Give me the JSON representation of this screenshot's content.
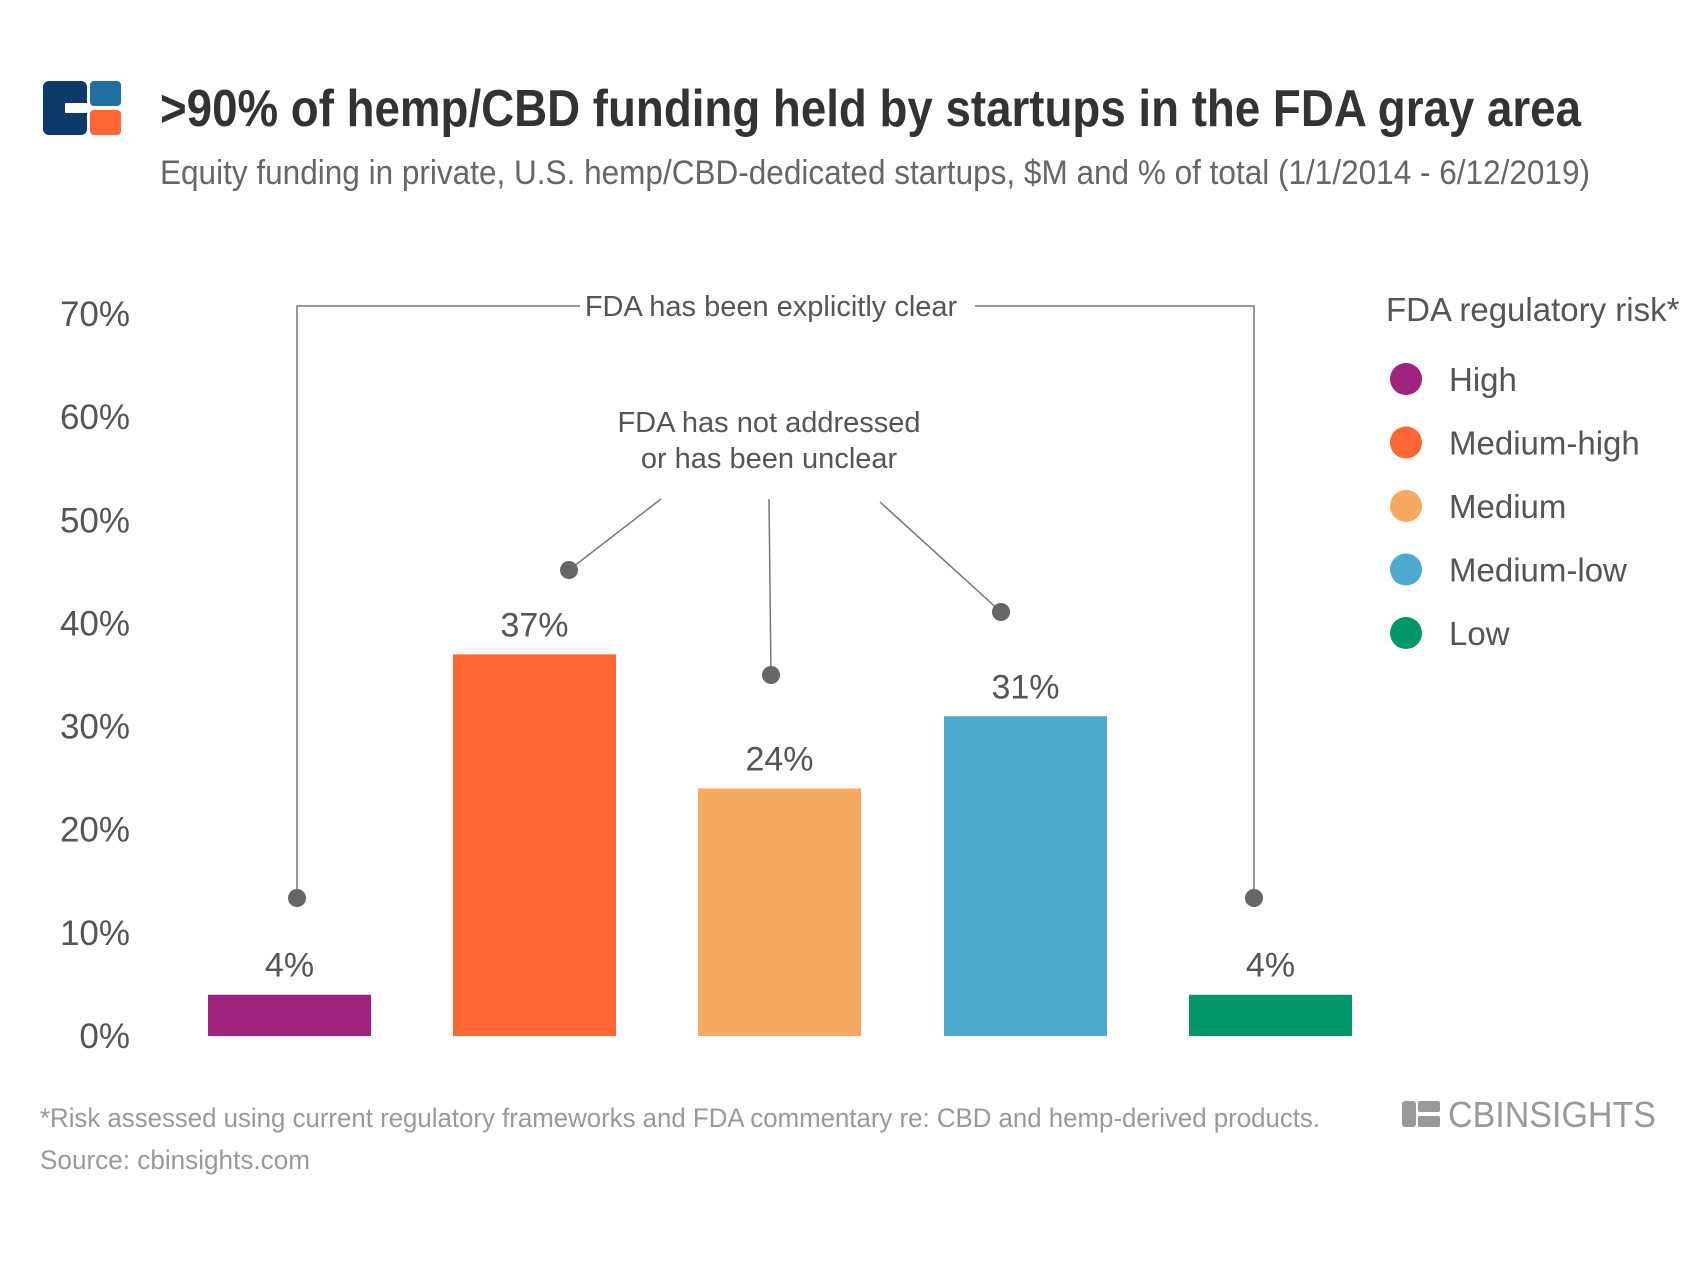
{
  "title": ">90% of hemp/CBD funding held by startups in the FDA gray area",
  "subtitle": "Equity funding in private, U.S. hemp/CBD-dedicated startups, $M and % of total (1/1/2014 - 6/12/2019)",
  "chart_data": {
    "type": "bar",
    "categories": [
      "High",
      "Medium-high",
      "Medium",
      "Medium-low",
      "Low"
    ],
    "values": [
      4,
      37,
      24,
      31,
      4
    ],
    "value_labels": [
      "4%",
      "37%",
      "24%",
      "31%",
      "4%"
    ],
    "colors": [
      "#a0237f",
      "#ff6633",
      "#f7a861",
      "#4faad0",
      "#00966a"
    ],
    "ylim": [
      0,
      70
    ],
    "yticks": [
      "0%",
      "10%",
      "20%",
      "30%",
      "40%",
      "50%",
      "60%",
      "70%"
    ],
    "grid": false,
    "legend": {
      "title": "FDA regulatory risk*",
      "placement": "right",
      "items": [
        "High",
        "Medium-high",
        "Medium",
        "Medium-low",
        "Low"
      ]
    },
    "annotations": {
      "clear": "FDA has been explicitly clear",
      "unclear_line1": "FDA has not addressed",
      "unclear_line2": "or has been unclear"
    }
  },
  "footer": {
    "note": "*Risk assessed using current regulatory frameworks and FDA commentary re: CBD and hemp-derived products.",
    "source": "Source: cbinsights.com",
    "brand": "CBINSIGHTS"
  }
}
